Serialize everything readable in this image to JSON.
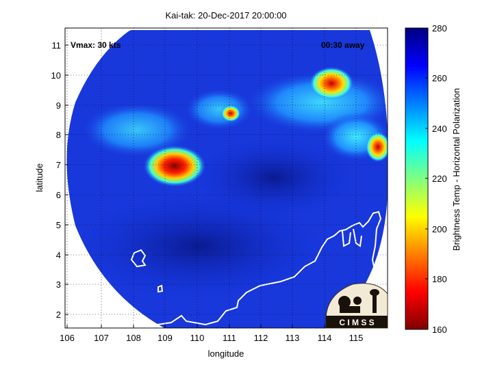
{
  "title": "Kai-tak: 20-Dec-2017 20:00:00",
  "annotations": {
    "vmax": "Vmax: 30 kts",
    "time_away": "00:30 away"
  },
  "axes": {
    "xlabel": "longitude",
    "ylabel": "latitude",
    "xticks": [
      "106",
      "107",
      "108",
      "109",
      "110",
      "111",
      "112",
      "113",
      "114",
      "115"
    ],
    "yticks": [
      "2",
      "3",
      "4",
      "5",
      "6",
      "7",
      "8",
      "9",
      "10",
      "11"
    ],
    "xlim": [
      105.9,
      116.0
    ],
    "ylim": [
      1.6,
      11.6
    ],
    "grid": true
  },
  "colorbar": {
    "label": "Brightness Temp - Horizontal Polarization",
    "ticks": [
      "280",
      "260",
      "240",
      "220",
      "200",
      "180",
      "160"
    ],
    "range": [
      160,
      280
    ],
    "colormap": "jet"
  },
  "logo": {
    "text": "C I M S S"
  },
  "colors": {
    "ocean_blue": "#1432d8",
    "deep_blue": "#0a1e9e",
    "coastline": "#ffffff"
  }
}
